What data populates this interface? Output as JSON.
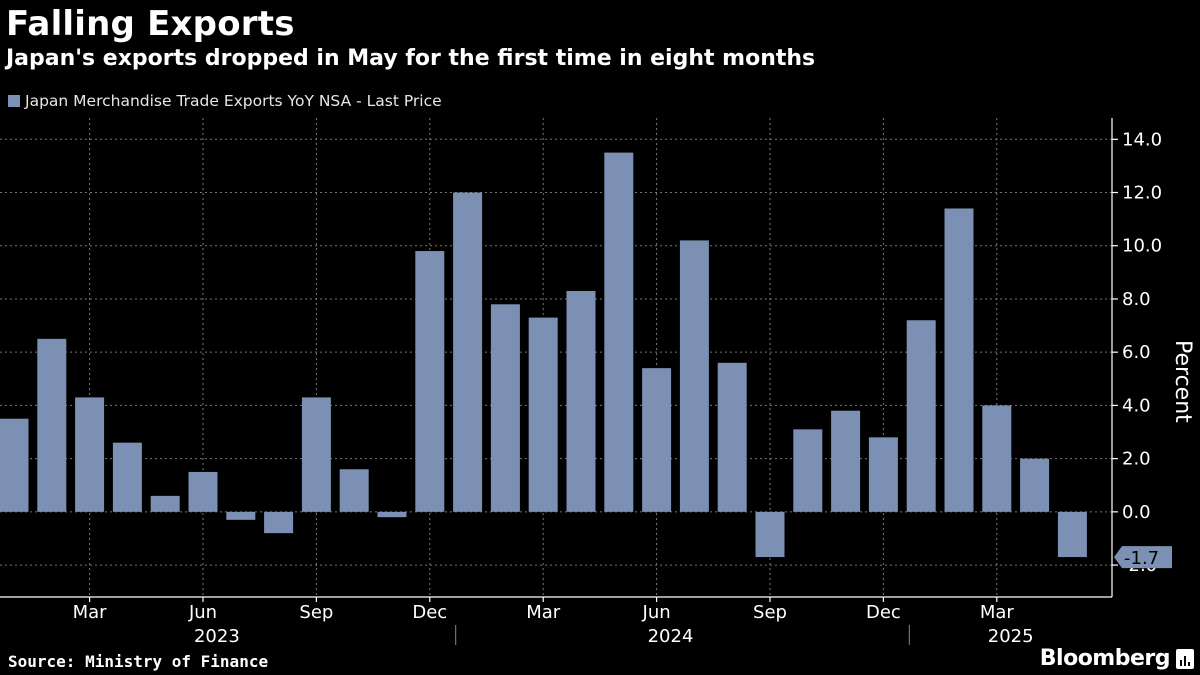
{
  "title": "Falling Exports",
  "subtitle": "Japan's exports dropped in May for the first time in eight months",
  "legend_label": "Japan Merchandise Trade Exports YoY NSA - Last Price",
  "source": "Source: Ministry of Finance",
  "brand": "Bloomberg",
  "colors": {
    "bar": "#7b90b2",
    "background": "#000000",
    "grid": "#777777"
  },
  "chart_data": {
    "type": "bar",
    "title": "Falling Exports",
    "ylabel": "Percent",
    "xlabel": "",
    "ylim": [
      -3.2,
      14.8
    ],
    "yticks": [
      -2.0,
      0.0,
      2.0,
      4.0,
      6.0,
      8.0,
      10.0,
      12.0,
      14.0
    ],
    "ytick_labels": [
      "-2.0",
      "0.0",
      "2.0",
      "4.0",
      "6.0",
      "8.0",
      "10.0",
      "12.0",
      "14.0"
    ],
    "categories": [
      "Jan 2023",
      "Feb 2023",
      "Mar 2023",
      "Apr 2023",
      "May 2023",
      "Jun 2023",
      "Jul 2023",
      "Aug 2023",
      "Sep 2023",
      "Oct 2023",
      "Nov 2023",
      "Dec 2023",
      "Jan 2024",
      "Feb 2024",
      "Mar 2024",
      "Apr 2024",
      "May 2024",
      "Jun 2024",
      "Jul 2024",
      "Aug 2024",
      "Sep 2024",
      "Oct 2024",
      "Nov 2024",
      "Dec 2024",
      "Jan 2025",
      "Feb 2025",
      "Mar 2025",
      "Apr 2025",
      "May 2025"
    ],
    "series": [
      {
        "name": "Japan Merchandise Trade Exports YoY NSA - Last Price",
        "values": [
          3.5,
          6.5,
          4.3,
          2.6,
          0.6,
          1.5,
          -0.3,
          -0.8,
          4.3,
          1.6,
          -0.2,
          9.8,
          12.0,
          7.8,
          7.3,
          8.3,
          13.5,
          5.4,
          10.2,
          5.6,
          -1.7,
          3.1,
          3.8,
          2.8,
          7.2,
          11.4,
          4.0,
          2.0,
          -1.7
        ]
      }
    ],
    "xtick_labels": [
      {
        "index": 2,
        "label": "Mar"
      },
      {
        "index": 5,
        "label": "Jun"
      },
      {
        "index": 8,
        "label": "Sep"
      },
      {
        "index": 11,
        "label": "Dec"
      },
      {
        "index": 14,
        "label": "Mar"
      },
      {
        "index": 17,
        "label": "Jun"
      },
      {
        "index": 20,
        "label": "Sep"
      },
      {
        "index": 23,
        "label": "Dec"
      },
      {
        "index": 26,
        "label": "Mar"
      }
    ],
    "year_labels": [
      {
        "label": "2023",
        "center_index": 5.5
      },
      {
        "label": "2024",
        "center_index": 17.5
      },
      {
        "label": "2025",
        "center_index": 26.5
      }
    ],
    "last_value_label": "-1.7"
  }
}
